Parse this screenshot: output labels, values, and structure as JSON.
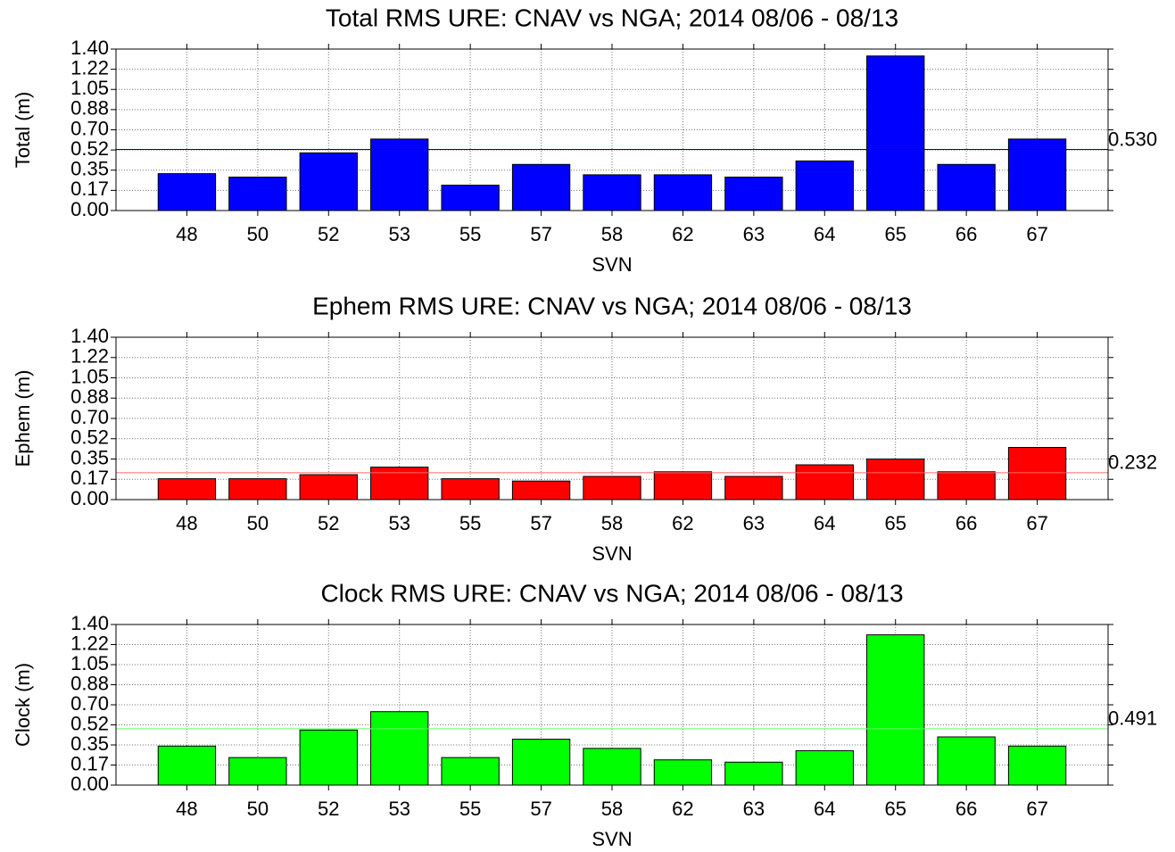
{
  "chart_data": [
    {
      "type": "bar",
      "title": "Total RMS URE: CNAV vs NGA; 2014 08/06 - 08/13",
      "xlabel": "SVN",
      "ylabel": "Total (m)",
      "categories": [
        "48",
        "50",
        "52",
        "53",
        "55",
        "57",
        "58",
        "62",
        "63",
        "64",
        "65",
        "66",
        "67"
      ],
      "values": [
        0.32,
        0.29,
        0.5,
        0.62,
        0.22,
        0.4,
        0.31,
        0.31,
        0.29,
        0.43,
        1.34,
        0.4,
        0.62
      ],
      "color": "#0000ff",
      "ylim": [
        0,
        1.4
      ],
      "yticks": [
        {
          "value": 0,
          "label": "0.00"
        },
        {
          "value": 0.175,
          "label": "0.17"
        },
        {
          "value": 0.35,
          "label": "0.35"
        },
        {
          "value": 0.525,
          "label": "0.52"
        },
        {
          "value": 0.7,
          "label": "0.70"
        },
        {
          "value": 0.875,
          "label": "0.88"
        },
        {
          "value": 1.05,
          "label": "1.05"
        },
        {
          "value": 1.225,
          "label": "1.22"
        },
        {
          "value": 1.4,
          "label": "1.40"
        }
      ],
      "grid": true,
      "reference_line": {
        "value": 0.53,
        "label": "0.530",
        "color": "#0000aa"
      }
    },
    {
      "type": "bar",
      "title": "Ephem RMS URE: CNAV vs NGA; 2014 08/06 - 08/13",
      "xlabel": "SVN",
      "ylabel": "Ephem (m)",
      "categories": [
        "48",
        "50",
        "52",
        "53",
        "55",
        "57",
        "58",
        "62",
        "63",
        "64",
        "65",
        "66",
        "67"
      ],
      "values": [
        0.18,
        0.18,
        0.215,
        0.28,
        0.18,
        0.16,
        0.2,
        0.24,
        0.2,
        0.3,
        0.35,
        0.24,
        0.45
      ],
      "color": "#ff0000",
      "ylim": [
        0,
        1.4
      ],
      "yticks": [
        {
          "value": 0,
          "label": "0.00"
        },
        {
          "value": 0.175,
          "label": "0.17"
        },
        {
          "value": 0.35,
          "label": "0.35"
        },
        {
          "value": 0.525,
          "label": "0.52"
        },
        {
          "value": 0.7,
          "label": "0.70"
        },
        {
          "value": 0.875,
          "label": "0.88"
        },
        {
          "value": 1.05,
          "label": "1.05"
        },
        {
          "value": 1.225,
          "label": "1.22"
        },
        {
          "value": 1.4,
          "label": "1.40"
        }
      ],
      "grid": true,
      "reference_line": {
        "value": 0.232,
        "label": "0.232",
        "color": "#ff6666"
      }
    },
    {
      "type": "bar",
      "title": "Clock RMS URE: CNAV vs NGA; 2014 08/06 - 08/13",
      "xlabel": "SVN",
      "ylabel": "Clock (m)",
      "categories": [
        "48",
        "50",
        "52",
        "53",
        "55",
        "57",
        "58",
        "62",
        "63",
        "64",
        "65",
        "66",
        "67"
      ],
      "values": [
        0.34,
        0.24,
        0.48,
        0.64,
        0.24,
        0.4,
        0.32,
        0.22,
        0.2,
        0.3,
        1.31,
        0.42,
        0.34
      ],
      "color": "#00ff00",
      "ylim": [
        0,
        1.4
      ],
      "yticks": [
        {
          "value": 0,
          "label": "0.00"
        },
        {
          "value": 0.175,
          "label": "0.17"
        },
        {
          "value": 0.35,
          "label": "0.35"
        },
        {
          "value": 0.525,
          "label": "0.52"
        },
        {
          "value": 0.7,
          "label": "0.70"
        },
        {
          "value": 0.875,
          "label": "0.88"
        },
        {
          "value": 1.05,
          "label": "1.05"
        },
        {
          "value": 1.225,
          "label": "1.22"
        },
        {
          "value": 1.4,
          "label": "1.40"
        }
      ],
      "grid": true,
      "reference_line": {
        "value": 0.491,
        "label": "0.491",
        "color": "#66ff66"
      }
    }
  ]
}
